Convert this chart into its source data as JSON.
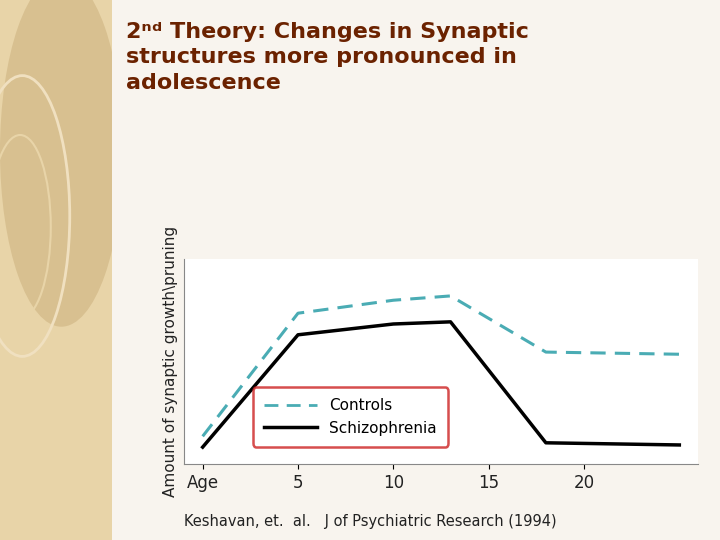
{
  "ylabel": "Amount of synaptic growth\\pruning",
  "citation": "Keshavan, et.  al.   J of Psychiatric Research (1994)",
  "controls_x": [
    0,
    5,
    10,
    13,
    18,
    25
  ],
  "controls_y": [
    0.13,
    0.7,
    0.76,
    0.78,
    0.52,
    0.51
  ],
  "schizo_x": [
    0,
    5,
    10,
    13,
    18,
    25
  ],
  "schizo_y": [
    0.08,
    0.6,
    0.65,
    0.66,
    0.1,
    0.09
  ],
  "controls_color": "#4aacb4",
  "schizo_color": "#000000",
  "title_color": "#6b2200",
  "bg_beige": "#e8d4a8",
  "bg_white": "#f8f4ee",
  "plot_bg": "#ffffff",
  "ylim": [
    0,
    0.95
  ],
  "xlim": [
    -1,
    26
  ],
  "xtick_positions": [
    0,
    5,
    10,
    15,
    20
  ],
  "xtick_labels": [
    "Age",
    "5",
    "10",
    "15",
    "20"
  ],
  "legend_edge_color": "#cc2222",
  "circle1_color": "#d8c090",
  "circle2_color": "#e0cb9a"
}
